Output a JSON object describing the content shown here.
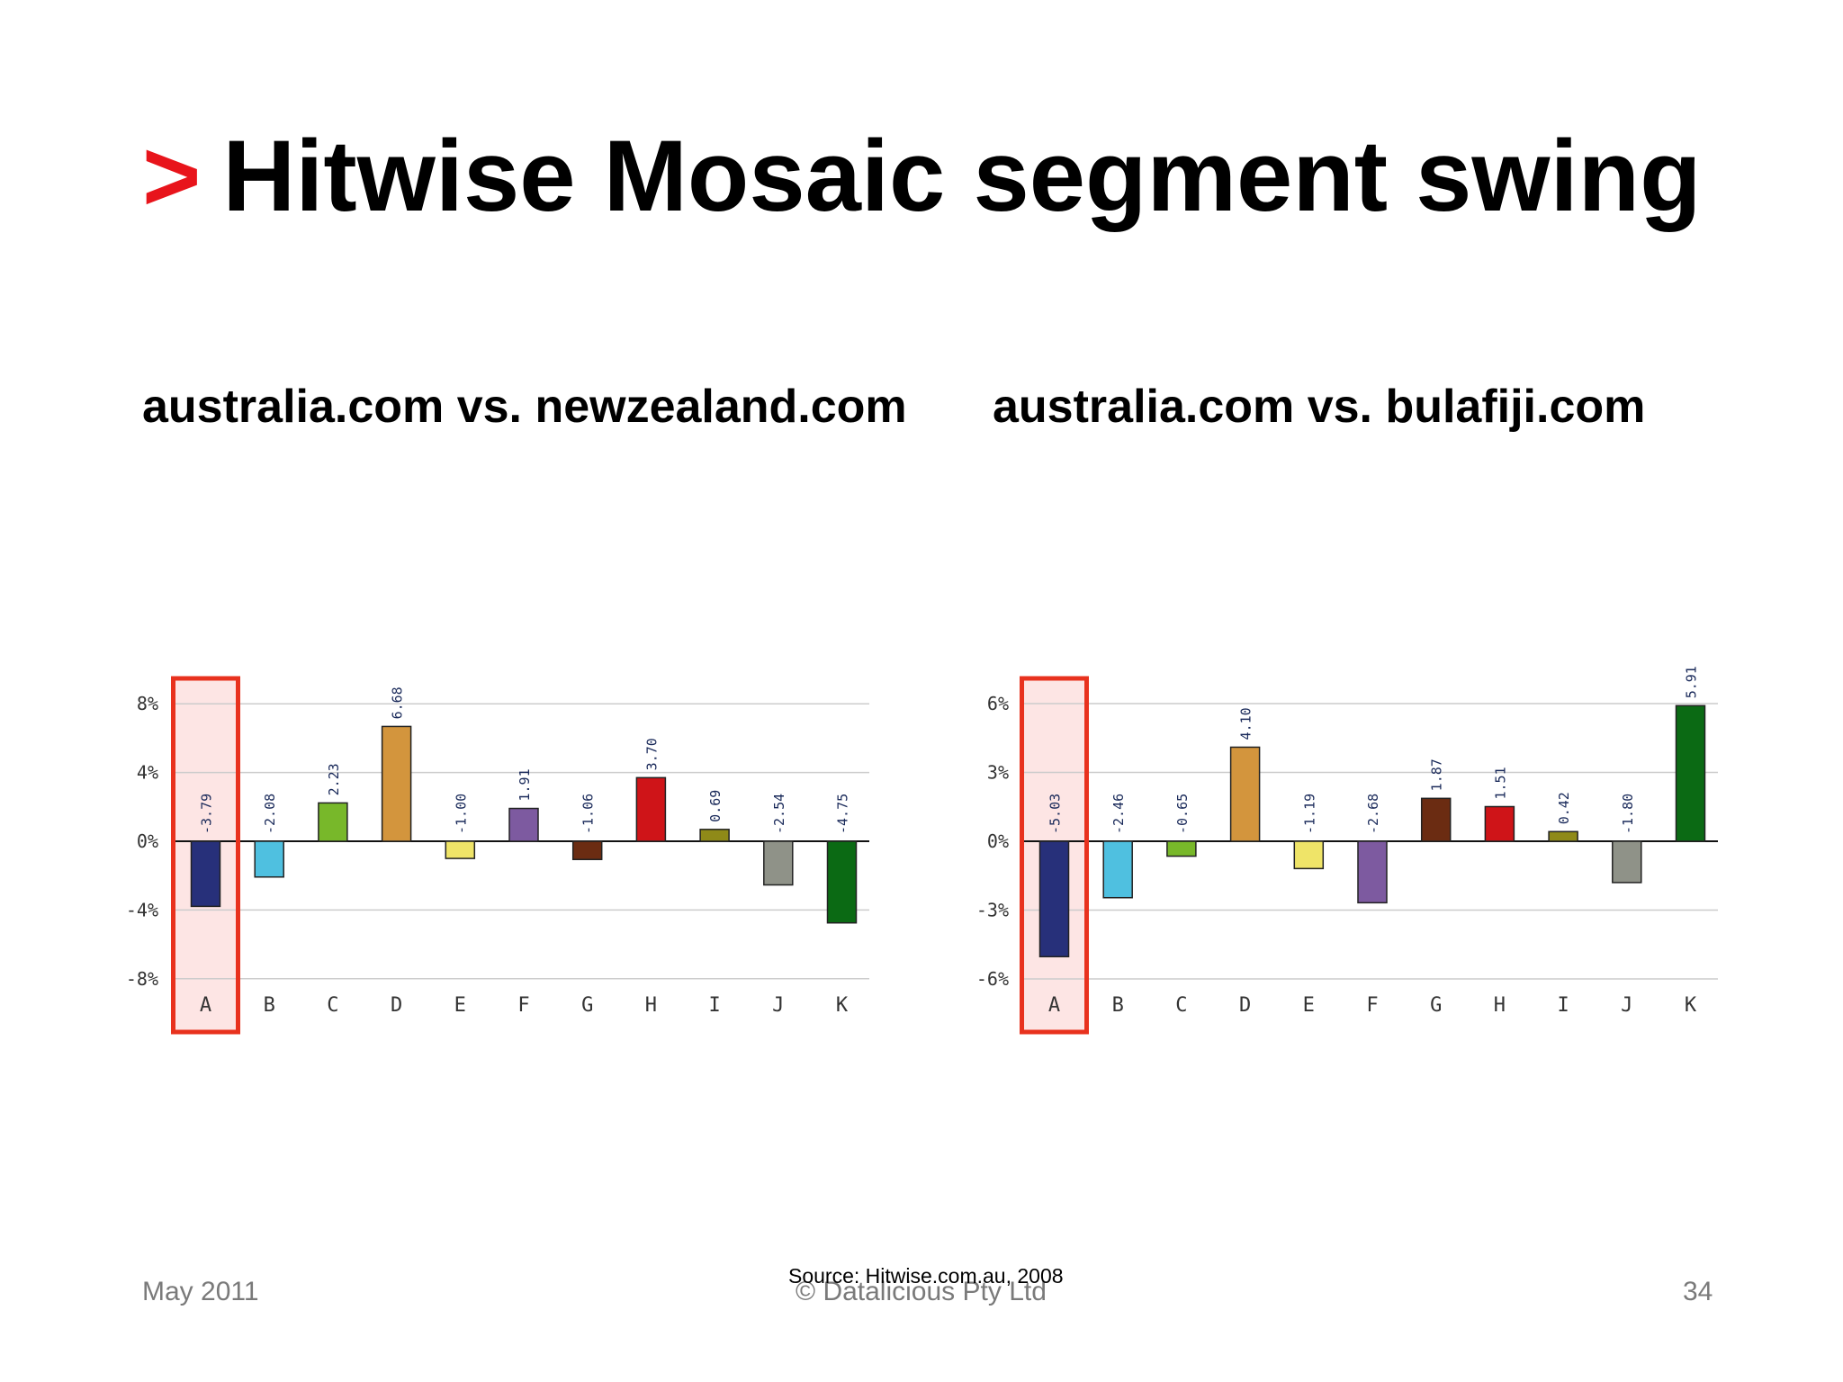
{
  "slide": {
    "title_marker": ">",
    "title": "Hitwise Mosaic segment swing",
    "footer_date": "May 2011",
    "footer_copyright": "© Datalicious Pty Ltd",
    "footer_page": "34",
    "source": "Source: Hitwise.com.au, 2008"
  },
  "colors": {
    "accent_red": "#e8141b",
    "highlight_border": "#e8321e",
    "highlight_fill": "#fde5e4",
    "segment_colors": [
      "#27307a",
      "#4fc0e0",
      "#78b82a",
      "#d3953d",
      "#efe468",
      "#7d5aa0",
      "#6b2c12",
      "#cf1418",
      "#8f8a18",
      "#8f9288",
      "#0b6a14"
    ]
  },
  "chart_data": [
    {
      "type": "bar",
      "title": "australia.com vs. newzealand.com",
      "categories": [
        "A",
        "B",
        "C",
        "D",
        "E",
        "F",
        "G",
        "H",
        "I",
        "J",
        "K"
      ],
      "values": [
        -3.79,
        -2.08,
        2.23,
        6.68,
        -1.0,
        1.91,
        -1.06,
        3.7,
        0.69,
        -2.54,
        -4.75
      ],
      "data_labels": [
        "-3.79",
        "-2.08",
        "2.23",
        "6.68",
        "-1.00",
        "1.91",
        "-1.06",
        "3.70",
        "0.69",
        "-2.54",
        "-4.75"
      ],
      "yticks": [
        8,
        4,
        0,
        -4,
        -8
      ],
      "ytick_labels": [
        "8%",
        "4%",
        "0%",
        "-4%",
        "-8%"
      ],
      "ylim": [
        -8,
        8
      ],
      "grid": true,
      "highlight_category": "A"
    },
    {
      "type": "bar",
      "title": "australia.com vs. bulafiji.com",
      "categories": [
        "A",
        "B",
        "C",
        "D",
        "E",
        "F",
        "G",
        "H",
        "I",
        "J",
        "K"
      ],
      "values": [
        -5.03,
        -2.46,
        -0.65,
        4.1,
        -1.19,
        -2.68,
        1.87,
        1.51,
        0.42,
        -1.8,
        5.91
      ],
      "data_labels": [
        "-5.03",
        "-2.46",
        "-0.65",
        "4.10",
        "-1.19",
        "-2.68",
        "1.87",
        "1.51",
        "0.42",
        "-1.80",
        "5.91"
      ],
      "yticks": [
        6,
        3,
        0,
        -3,
        -6
      ],
      "ytick_labels": [
        "6%",
        "3%",
        "0%",
        "-3%",
        "-6%"
      ],
      "ylim": [
        -6,
        6
      ],
      "grid": true,
      "highlight_category": "A"
    }
  ]
}
